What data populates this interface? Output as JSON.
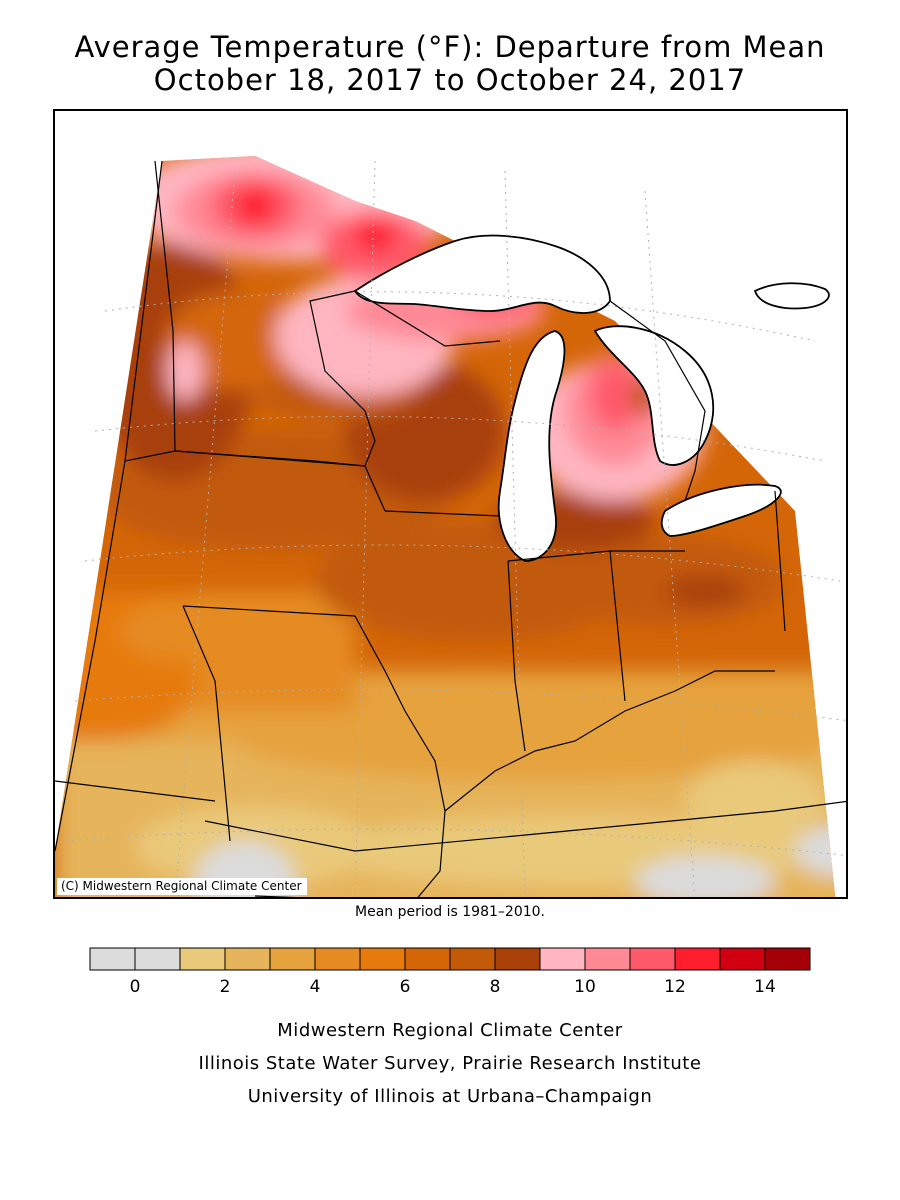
{
  "title": {
    "line1": "Average Temperature (°F): Departure from Mean",
    "line2": "October 18, 2017 to October 24, 2017"
  },
  "map": {
    "credit": "(C) Midwestern Regional Climate Center",
    "water_color": "#ffffff",
    "border_color": "#000000",
    "grid_color": "#b0b0b0"
  },
  "mean_period": "Mean period is 1981–2010.",
  "legend": {
    "colors": [
      "#dcdcdc",
      "#dcdcdc",
      "#e9c97a",
      "#e6b45a",
      "#e6a23c",
      "#e58b22",
      "#e67a0a",
      "#d46608",
      "#c25a08",
      "#a84008",
      "#ffb6c1",
      "#ff8a96",
      "#ff5a6a",
      "#ff1e2e",
      "#d00010",
      "#a50008"
    ],
    "tick_labels": [
      "0",
      "2",
      "4",
      "6",
      "8",
      "10",
      "12",
      "14"
    ]
  },
  "footer": {
    "line1": "Midwestern Regional Climate Center",
    "line2": "Illinois State Water Survey, Prairie Research Institute",
    "line3": "University of Illinois at Urbana–Champaign"
  }
}
